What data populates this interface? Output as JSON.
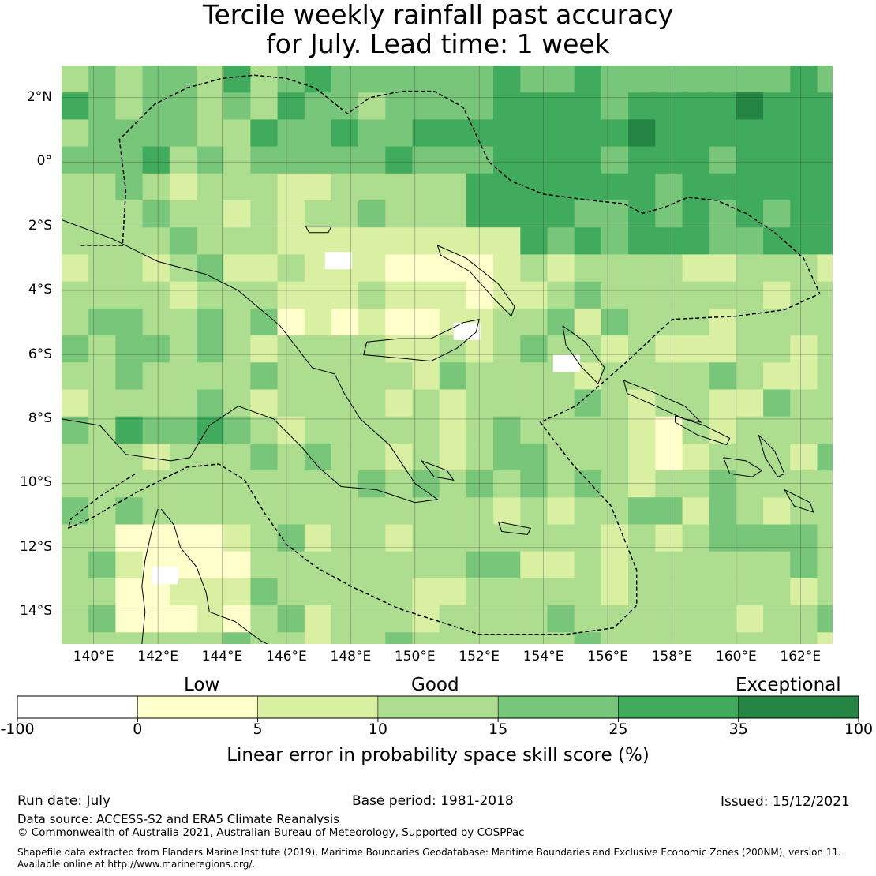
{
  "title": {
    "line1": "Tercile weekly rainfall past accuracy",
    "line2": "for July. Lead time: 1 week"
  },
  "map": {
    "lon_range": [
      139,
      163
    ],
    "lat_range": [
      -15,
      3
    ],
    "lat_ticks": [
      {
        "value": 2,
        "label": "2°N"
      },
      {
        "value": 0,
        "label": "0°"
      },
      {
        "value": -2,
        "label": "2°S"
      },
      {
        "value": -4,
        "label": "4°S"
      },
      {
        "value": -6,
        "label": "6°S"
      },
      {
        "value": -8,
        "label": "8°S"
      },
      {
        "value": -10,
        "label": "10°S"
      },
      {
        "value": -12,
        "label": "12°S"
      },
      {
        "value": -14,
        "label": "14°S"
      }
    ],
    "lon_ticks": [
      {
        "value": 140,
        "label": "140°E"
      },
      {
        "value": 142,
        "label": "142°E"
      },
      {
        "value": 144,
        "label": "144°E"
      },
      {
        "value": 146,
        "label": "146°E"
      },
      {
        "value": 148,
        "label": "148°E"
      },
      {
        "value": 150,
        "label": "150°E"
      },
      {
        "value": 152,
        "label": "152°E"
      },
      {
        "value": 154,
        "label": "154°E"
      },
      {
        "value": 156,
        "label": "156°E"
      },
      {
        "value": 158,
        "label": "158°E"
      },
      {
        "value": 160,
        "label": "160°E"
      },
      {
        "value": 162,
        "label": "162°E"
      }
    ],
    "skill_zones": [
      {
        "name": "equatorial-north",
        "lon": [
          139,
          163
        ],
        "lat": [
          0,
          3
        ],
        "class": 4
      },
      {
        "name": "northeast-high",
        "lon": [
          152,
          163
        ],
        "lat": [
          -3,
          2
        ],
        "class": 5
      },
      {
        "name": "northeast-exceptional-a",
        "lon": [
          156.7,
          157.5
        ],
        "lat": [
          -0.5,
          1.5
        ],
        "class": 6
      },
      {
        "name": "northeast-exceptional-b",
        "lon": [
          160,
          160.8
        ],
        "lat": [
          1.5,
          2.0
        ],
        "class": 6
      },
      {
        "name": "png-mainland",
        "lon": [
          139,
          147
        ],
        "lat": [
          -9,
          -2
        ],
        "class": 3
      },
      {
        "name": "png-west-high",
        "lon": [
          140,
          142
        ],
        "lat": [
          -6.5,
          -4.5
        ],
        "class": 4
      },
      {
        "name": "gulf-high",
        "lon": [
          141,
          144
        ],
        "lat": [
          -8.5,
          -7.5
        ],
        "class": 5
      },
      {
        "name": "bismarck-low",
        "lon": [
          146,
          153
        ],
        "lat": [
          -5.5,
          -2
        ],
        "class": 2
      },
      {
        "name": "cape-york-low",
        "lon": [
          141,
          145
        ],
        "lat": [
          -15,
          -11
        ],
        "class": 1
      },
      {
        "name": "coral-sea",
        "lon": [
          145,
          163
        ],
        "lat": [
          -15,
          -8
        ],
        "class": 3
      },
      {
        "name": "solomon-low",
        "lon": [
          156.5,
          160
        ],
        "lat": [
          -9.5,
          -7.5
        ],
        "class": 2
      }
    ],
    "zero_cells": [
      {
        "lon": 147.2,
        "lat": -2.8
      },
      {
        "lon": 151.2,
        "lat": -5.0
      },
      {
        "lon": 154.3,
        "lat": -6.0
      },
      {
        "lon": 141.8,
        "lat": -12.6
      }
    ]
  },
  "colorbar": {
    "words": [
      "Low",
      "Good",
      "Exceptional"
    ],
    "ticks": [
      "-100",
      "0",
      "5",
      "10",
      "15",
      "25",
      "35",
      "100"
    ],
    "colors": [
      "#ffffff",
      "#ffffcc",
      "#d9f0a3",
      "#addd8e",
      "#78c679",
      "#41ab5d",
      "#238443"
    ],
    "title": "Linear error in probability space skill score (%)"
  },
  "footer": {
    "run_date": "Run date: July",
    "base_period": "Base period: 1981-2018",
    "issued": "Issued: 15/12/2021",
    "data_source": "Data source: ACCESS-S2 and ERA5 Climate Reanalysis",
    "copyright": "© Commonwealth of Australia 2021, Australian Bureau of Meteorology, Supported by COSPPac",
    "shapefile_line1": "Shapefile data extracted from Flanders Marine Institute (2019), Maritime Boundaries Geodatabase: Maritime Boundaries and Exclusive Economic Zones (200NM), version 11.",
    "shapefile_line2": "Available online at http://www.marineregions.org/."
  }
}
